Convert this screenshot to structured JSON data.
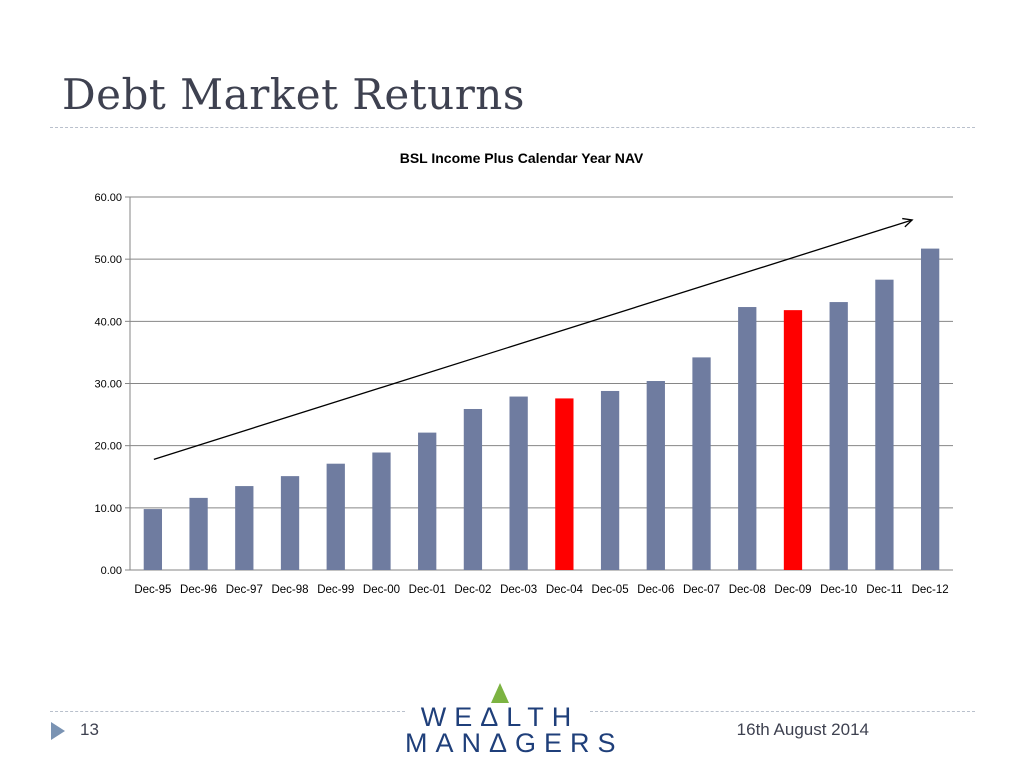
{
  "slide": {
    "title": "Debt Market Returns",
    "page_number": "13",
    "date": "16th August 2014",
    "logo_line1": "WEΔLTH",
    "logo_line2": "MANΔGERS"
  },
  "colors": {
    "bar_default": "#6f7ca0",
    "bar_highlight": "#ff0000",
    "grid": "#868686",
    "title_text": "#3e4150"
  },
  "chart_data": {
    "type": "bar",
    "title": "BSL Income Plus Calendar Year NAV",
    "xlabel": "",
    "ylabel": "",
    "ylim": [
      0,
      60
    ],
    "y_ticks": [
      "0.00",
      "10.00",
      "20.00",
      "30.00",
      "40.00",
      "50.00",
      "60.00"
    ],
    "grid": true,
    "legend": "none",
    "categories": [
      "Dec-95",
      "Dec-96",
      "Dec-97",
      "Dec-98",
      "Dec-99",
      "Dec-00",
      "Dec-01",
      "Dec-02",
      "Dec-03",
      "Dec-04",
      "Dec-05",
      "Dec-06",
      "Dec-07",
      "Dec-08",
      "Dec-09",
      "Dec-10",
      "Dec-11",
      "Dec-12"
    ],
    "values": [
      9.8,
      11.6,
      13.5,
      15.1,
      17.1,
      18.9,
      22.1,
      25.9,
      27.9,
      27.6,
      28.8,
      30.4,
      34.2,
      42.3,
      41.8,
      43.1,
      46.7,
      51.7
    ],
    "highlighted": [
      "Dec-04",
      "Dec-09"
    ],
    "trend_arrow": {
      "from": [
        "Dec-95",
        17.8
      ],
      "to": [
        "Dec-12",
        56.3
      ]
    }
  }
}
